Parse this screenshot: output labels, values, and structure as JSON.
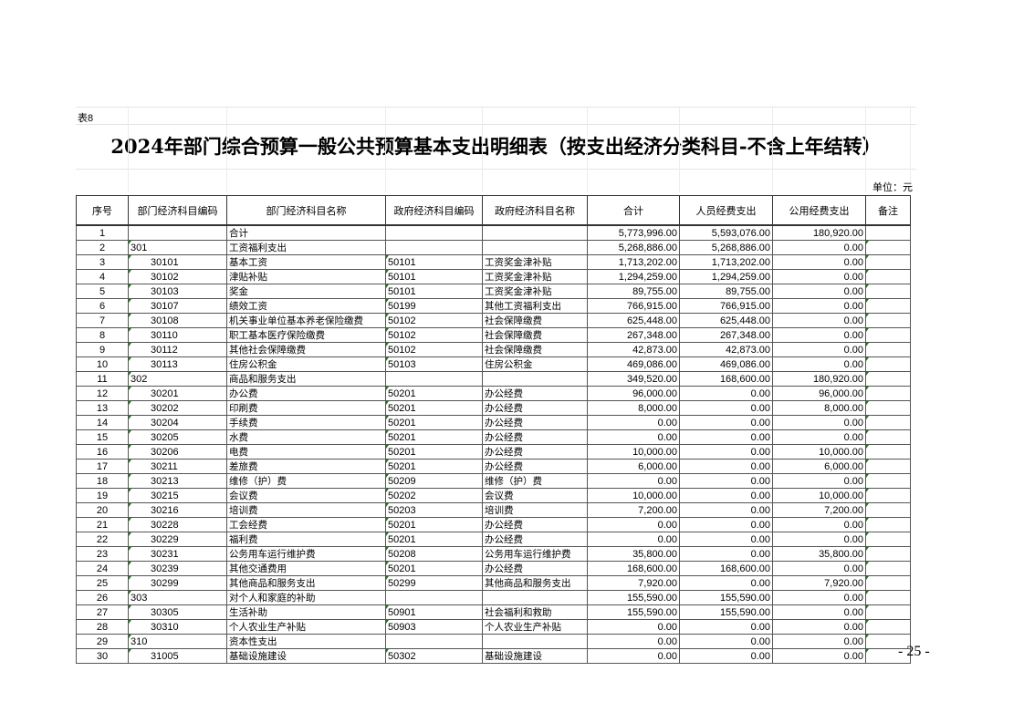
{
  "table_label": "表8",
  "title": "2024年部门综合预算一般公共预算基本支出明细表（按支出经济分类科目-不含上年结转）",
  "unit": "单位：元",
  "columns": [
    "序号",
    "部门经济科目编码",
    "部门经济科目名称",
    "政府经济科目编码",
    "政府经济科目名称",
    "合计",
    "人员经费支出",
    "公用经费支出",
    "备注"
  ],
  "rows": [
    [
      "1",
      "",
      "合计",
      "",
      "",
      "5,773,996.00",
      "5,593,076.00",
      "180,920.00",
      ""
    ],
    [
      "2",
      "301",
      "工资福利支出",
      "",
      "",
      "5,268,886.00",
      "5,268,886.00",
      "0.00",
      ""
    ],
    [
      "3",
      "30101",
      "基本工资",
      "50101",
      "工资奖金津补贴",
      "1,713,202.00",
      "1,713,202.00",
      "0.00",
      ""
    ],
    [
      "4",
      "30102",
      "津贴补贴",
      "50101",
      "工资奖金津补贴",
      "1,294,259.00",
      "1,294,259.00",
      "0.00",
      ""
    ],
    [
      "5",
      "30103",
      "奖金",
      "50101",
      "工资奖金津补贴",
      "89,755.00",
      "89,755.00",
      "0.00",
      ""
    ],
    [
      "6",
      "30107",
      "绩效工资",
      "50199",
      "其他工资福利支出",
      "766,915.00",
      "766,915.00",
      "0.00",
      ""
    ],
    [
      "7",
      "30108",
      "机关事业单位基本养老保险缴费",
      "50102",
      "社会保障缴费",
      "625,448.00",
      "625,448.00",
      "0.00",
      ""
    ],
    [
      "8",
      "30110",
      "职工基本医疗保险缴费",
      "50102",
      "社会保障缴费",
      "267,348.00",
      "267,348.00",
      "0.00",
      ""
    ],
    [
      "9",
      "30112",
      "其他社会保障缴费",
      "50102",
      "社会保障缴费",
      "42,873.00",
      "42,873.00",
      "0.00",
      ""
    ],
    [
      "10",
      "30113",
      "住房公积金",
      "50103",
      "住房公积金",
      "469,086.00",
      "469,086.00",
      "0.00",
      ""
    ],
    [
      "11",
      "302",
      "商品和服务支出",
      "",
      "",
      "349,520.00",
      "168,600.00",
      "180,920.00",
      ""
    ],
    [
      "12",
      "30201",
      "办公费",
      "50201",
      "办公经费",
      "96,000.00",
      "0.00",
      "96,000.00",
      ""
    ],
    [
      "13",
      "30202",
      "印刷费",
      "50201",
      "办公经费",
      "8,000.00",
      "0.00",
      "8,000.00",
      ""
    ],
    [
      "14",
      "30204",
      "手续费",
      "50201",
      "办公经费",
      "0.00",
      "0.00",
      "0.00",
      ""
    ],
    [
      "15",
      "30205",
      "水费",
      "50201",
      "办公经费",
      "0.00",
      "0.00",
      "0.00",
      ""
    ],
    [
      "16",
      "30206",
      "电费",
      "50201",
      "办公经费",
      "10,000.00",
      "0.00",
      "10,000.00",
      ""
    ],
    [
      "17",
      "30211",
      "差旅费",
      "50201",
      "办公经费",
      "6,000.00",
      "0.00",
      "6,000.00",
      ""
    ],
    [
      "18",
      "30213",
      "维修（护）费",
      "50209",
      "维修（护）费",
      "0.00",
      "0.00",
      "0.00",
      ""
    ],
    [
      "19",
      "30215",
      "会议费",
      "50202",
      "会议费",
      "10,000.00",
      "0.00",
      "10,000.00",
      ""
    ],
    [
      "20",
      "30216",
      "培训费",
      "50203",
      "培训费",
      "7,200.00",
      "0.00",
      "7,200.00",
      ""
    ],
    [
      "21",
      "30228",
      "工会经费",
      "50201",
      "办公经费",
      "0.00",
      "0.00",
      "0.00",
      ""
    ],
    [
      "22",
      "30229",
      "福利费",
      "50201",
      "办公经费",
      "0.00",
      "0.00",
      "0.00",
      ""
    ],
    [
      "23",
      "30231",
      "公务用车运行维护费",
      "50208",
      "公务用车运行维护费",
      "35,800.00",
      "0.00",
      "35,800.00",
      ""
    ],
    [
      "24",
      "30239",
      "其他交通费用",
      "50201",
      "办公经费",
      "168,600.00",
      "168,600.00",
      "0.00",
      ""
    ],
    [
      "25",
      "30299",
      "其他商品和服务支出",
      "50299",
      "其他商品和服务支出",
      "7,920.00",
      "0.00",
      "7,920.00",
      ""
    ],
    [
      "26",
      "303",
      "对个人和家庭的补助",
      "",
      "",
      "155,590.00",
      "155,590.00",
      "0.00",
      ""
    ],
    [
      "27",
      "30305",
      "生活补助",
      "50901",
      "社会福利和救助",
      "155,590.00",
      "155,590.00",
      "0.00",
      ""
    ],
    [
      "28",
      "30310",
      "个人农业生产补贴",
      "50903",
      "个人农业生产补贴",
      "0.00",
      "0.00",
      "0.00",
      ""
    ],
    [
      "29",
      "310",
      "资本性支出",
      "",
      "",
      "0.00",
      "0.00",
      "0.00",
      ""
    ],
    [
      "30",
      "31005",
      "基础设施建设",
      "50302",
      "基础设施建设",
      "0.00",
      "0.00",
      "0.00",
      ""
    ]
  ],
  "page_number": "- 25 -"
}
